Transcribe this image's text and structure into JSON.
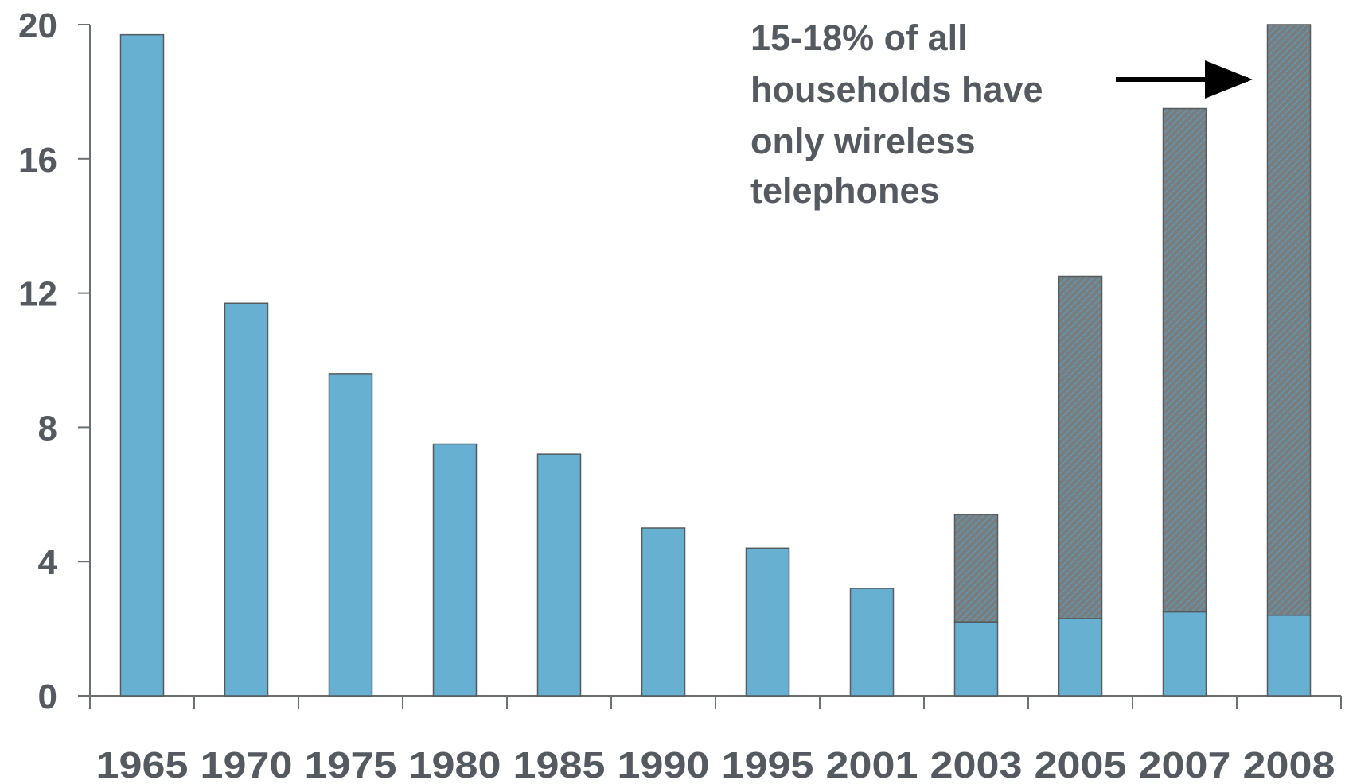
{
  "chart_data": {
    "type": "bar",
    "stacked": true,
    "categories": [
      "1965",
      "1970",
      "1975",
      "1980",
      "1985",
      "1990",
      "1995",
      "2001",
      "2003",
      "2005",
      "2007",
      "2008"
    ],
    "series": [
      {
        "color": "#67b0d1",
        "values": [
          19.7,
          11.7,
          9.6,
          7.5,
          7.2,
          5.0,
          4.4,
          3.2,
          2.2,
          2.3,
          2.5,
          2.4
        ]
      },
      {
        "color": "#6b7173",
        "pattern": "hatched",
        "values": [
          0,
          0,
          0,
          0,
          0,
          0,
          0,
          0,
          3.2,
          10.2,
          15.0,
          17.6
        ]
      }
    ],
    "yticks": [
      "0",
      "4",
      "8",
      "12",
      "16",
      "20"
    ],
    "ylim": [
      0,
      20
    ],
    "title": "",
    "xlabel": "",
    "ylabel": "",
    "grid": false,
    "annotation": {
      "lines": [
        "15-18% of all",
        "households have",
        "only wireless",
        "telephones"
      ],
      "arrow_target": "2008"
    }
  }
}
